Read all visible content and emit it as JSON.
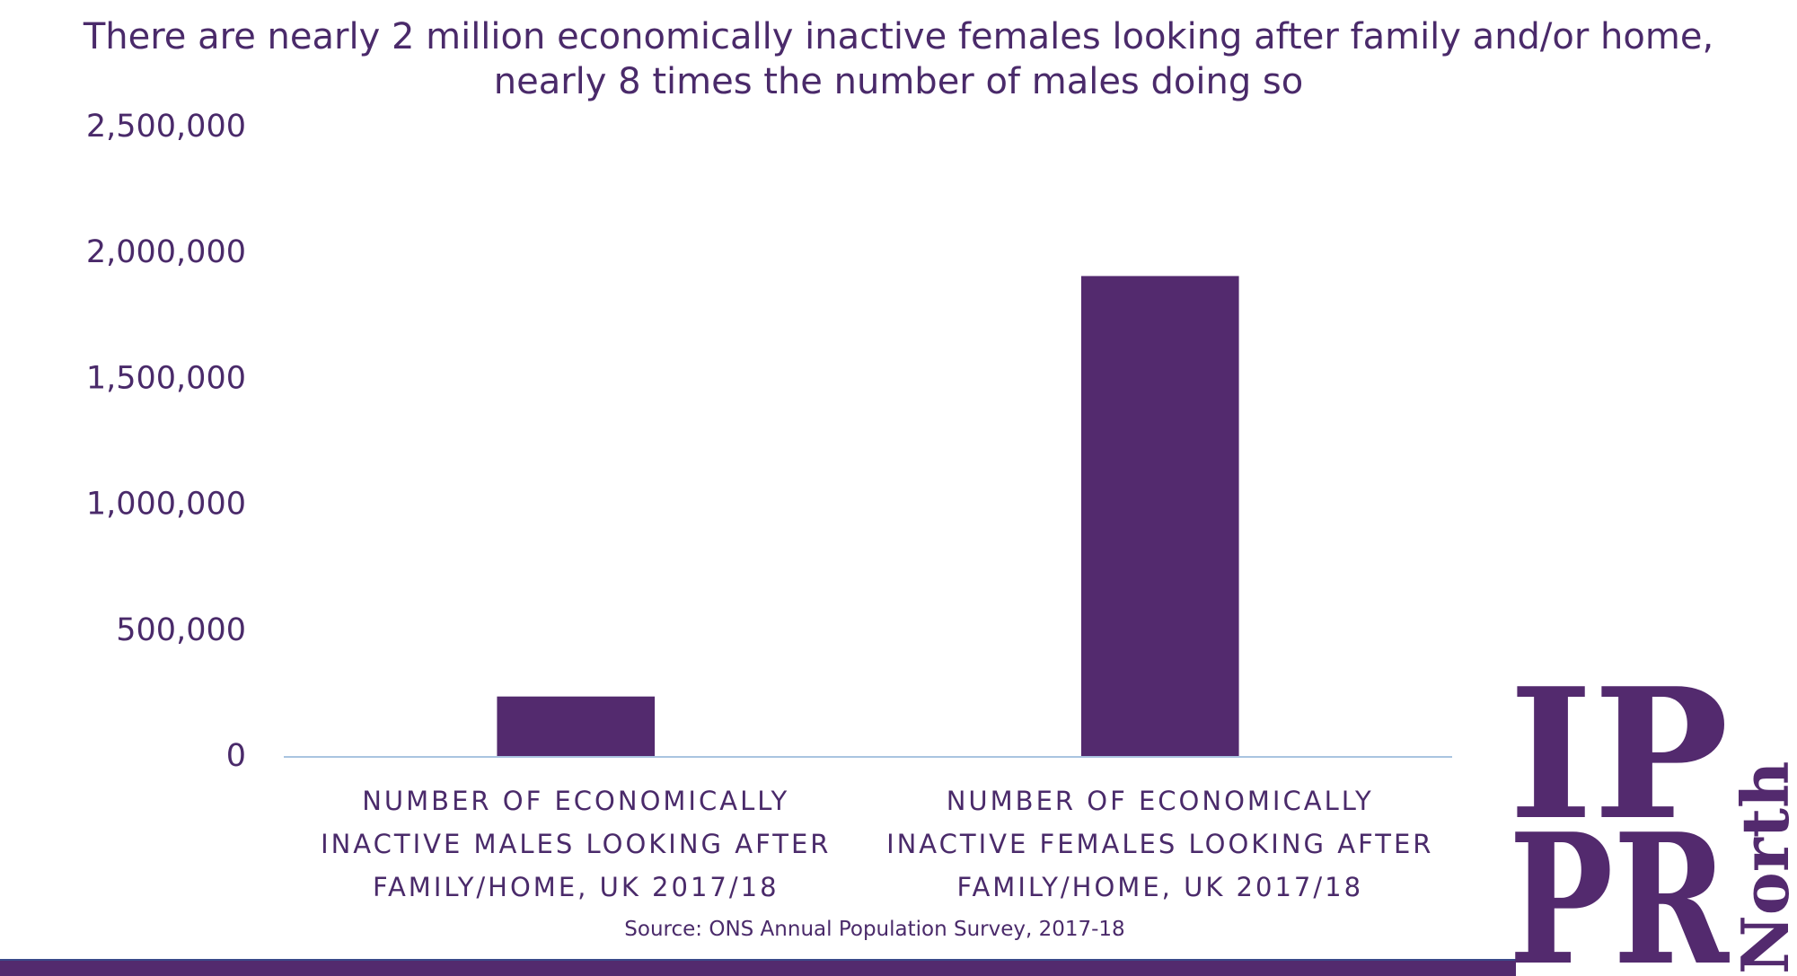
{
  "chart_data": {
    "type": "bar",
    "title": [
      "There are nearly 2 million economically inactive females looking after family and/or home,",
      "nearly 8 times the number of males doing so"
    ],
    "categories": [
      "NUMBER OF ECONOMICALLY INACTIVE MALES LOOKING AFTER FAMILY/HOME, UK 2017/18",
      "NUMBER OF ECONOMICALLY INACTIVE FEMALES LOOKING AFTER FAMILY/HOME, UK 2017/18"
    ],
    "values": [
      240000,
      1910000
    ],
    "color": "#532a6e",
    "ylim": [
      0,
      2500000
    ],
    "yticks": [
      0,
      {
        "value": 500000,
        "label": "500,000"
      },
      {
        "value": 1000000,
        "label": "1,000,000"
      },
      {
        "value": 1500000,
        "label": "1,500,000"
      },
      {
        "value": 2000000,
        "label": "2,000,000"
      },
      {
        "value": 2500000,
        "label": "2,500,000"
      }
    ],
    "grid": false,
    "source": "Source: ONS Annual Population Survey, 2017-18"
  },
  "logo": {
    "lines": [
      "IP",
      "PR",
      "North"
    ]
  }
}
